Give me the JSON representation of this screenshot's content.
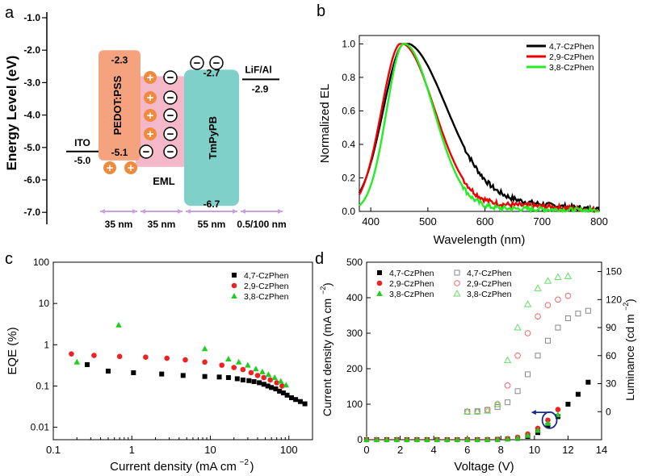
{
  "panel_labels": [
    "a",
    "b",
    "c",
    "d"
  ],
  "chart_data": [
    {
      "type": "energy-diagram",
      "panel": "a",
      "ylabel": "Energy Level (eV)",
      "ylim": [
        -7.0,
        -1.0
      ],
      "yticks": [
        "-1.0",
        "-2.0",
        "-3.0",
        "-4.0",
        "-5.0",
        "-6.0",
        "-7.0"
      ],
      "layers": [
        {
          "name": "ITO",
          "levels": [
            "-5.0"
          ],
          "thickness": ""
        },
        {
          "name": "PEDOT:PSS",
          "levels": [
            "-2.3",
            "-5.1"
          ],
          "thickness": "35 nm",
          "color": "#f4a37e"
        },
        {
          "name": "EML",
          "levels": [],
          "thickness": "35 nm",
          "color": "#f4b8c8"
        },
        {
          "name": "TmPyPB",
          "levels": [
            "-2.7",
            "-6.7"
          ],
          "thickness": "55 nm",
          "color": "#7fd0c8"
        },
        {
          "name": "LiF/Al",
          "levels": [
            "-2.9"
          ],
          "thickness": "0.5/100 nm"
        }
      ],
      "charges": {
        "hole": "+",
        "electron": "−"
      }
    },
    {
      "type": "line",
      "panel": "b",
      "xlabel": "Wavelength (nm)",
      "ylabel": "Normalized EL",
      "xlim": [
        380,
        800
      ],
      "ylim": [
        0,
        1.05
      ],
      "xticks": [
        400,
        500,
        600,
        700,
        800
      ],
      "yticks": [
        0.0,
        0.2,
        0.4,
        0.6,
        0.8,
        1.0
      ],
      "series": [
        {
          "name": "4,7-CzPhen",
          "color": "#000000",
          "peak": 460,
          "sigL": 38,
          "sigR": 72,
          "tail": 0.045
        },
        {
          "name": "2,9-CzPhen",
          "color": "#ee0000",
          "peak": 453,
          "sigL": 34,
          "sigR": 58,
          "tail": 0.035
        },
        {
          "name": "3,8-CzPhen",
          "color": "#22ee22",
          "peak": 458,
          "sigL": 30,
          "sigR": 52,
          "tail": 0.015
        }
      ]
    },
    {
      "type": "scatter",
      "panel": "c",
      "xscale": "log",
      "yscale": "log",
      "xlabel": "Current density (mA cm",
      "xlabel_sup": "−2",
      "xlabel_end": ")",
      "ylabel": "EQE (%)",
      "xlim": [
        0.1,
        200
      ],
      "ylim": [
        0.005,
        100
      ],
      "xticks": [
        0.1,
        1,
        10,
        100
      ],
      "yticks": [
        0.01,
        0.1,
        1,
        10,
        100
      ],
      "xtick_labels": [
        "0.1",
        "1",
        "10",
        "100"
      ],
      "ytick_labels": [
        "0.01",
        "0.1",
        "1",
        "10",
        "100"
      ],
      "series": [
        {
          "name": "4,7-CzPhen",
          "marker": "square",
          "color": "#000000",
          "x": [
            0.27,
            0.5,
            1.05,
            2.4,
            4.5,
            8.5,
            13,
            17,
            22,
            26,
            31,
            36,
            42,
            48,
            54,
            60,
            68,
            76,
            85,
            95,
            108,
            122,
            140,
            160
          ],
          "y": [
            0.33,
            0.23,
            0.21,
            0.195,
            0.18,
            0.17,
            0.165,
            0.16,
            0.15,
            0.14,
            0.135,
            0.128,
            0.12,
            0.11,
            0.1,
            0.092,
            0.085,
            0.075,
            0.068,
            0.06,
            0.052,
            0.047,
            0.042,
            0.037
          ]
        },
        {
          "name": "2,9-CzPhen",
          "marker": "circle",
          "color": "#ee2222",
          "x": [
            0.17,
            0.33,
            0.7,
            1.5,
            2.8,
            4.8,
            8.5,
            14,
            20,
            26,
            33,
            40,
            48,
            58,
            70,
            82
          ],
          "y": [
            0.6,
            0.55,
            0.52,
            0.5,
            0.47,
            0.43,
            0.38,
            0.32,
            0.28,
            0.25,
            0.21,
            0.18,
            0.16,
            0.14,
            0.12,
            0.1
          ]
        },
        {
          "name": "3,8-CzPhen",
          "marker": "triangle",
          "color": "#22cc22",
          "x": [
            0.2,
            0.68,
            8.5,
            17,
            23,
            30,
            38,
            46,
            55,
            66,
            79,
            92
          ],
          "y": [
            0.38,
            3.0,
            0.8,
            0.45,
            0.38,
            0.32,
            0.26,
            0.22,
            0.19,
            0.16,
            0.13,
            0.105
          ]
        }
      ]
    },
    {
      "type": "scatter-dual-axis",
      "panel": "d",
      "xlabel": "Voltage (V)",
      "ylabel_left": "Current density (mA cm",
      "ylabel_left_sup": "−2",
      "ylabel_left_end": ")",
      "ylabel_right": "Luminance (cd m",
      "ylabel_right_sup": "−2",
      "ylabel_right_end": ")",
      "xlim": [
        0,
        14
      ],
      "ylim_left": [
        0,
        500
      ],
      "ylim_right": [
        -30,
        160
      ],
      "xticks": [
        0,
        2,
        4,
        6,
        8,
        10,
        12,
        14
      ],
      "yticks_left": [
        0,
        100,
        200,
        300,
        400,
        500
      ],
      "yticks_right": [
        0,
        30,
        60,
        90,
        120,
        150
      ],
      "current_density": [
        {
          "name": "4,7-CzPhen",
          "marker": "square",
          "color": "#000000",
          "x": [
            0,
            0.6,
            1.2,
            1.8,
            2.4,
            3,
            3.6,
            4.2,
            4.8,
            5.4,
            6,
            6.6,
            7.2,
            7.8,
            8.4,
            9,
            9.6,
            10.2,
            10.8,
            11.4,
            12,
            12.6,
            13.2
          ],
          "y": [
            0,
            0,
            0,
            0,
            0,
            0,
            0,
            0,
            0,
            0,
            0,
            0,
            0.2,
            0.8,
            2,
            4,
            9,
            20,
            40,
            65,
            100,
            128,
            162
          ]
        },
        {
          "name": "2,9-CzPhen",
          "marker": "circle",
          "color": "#ee2222",
          "x": [
            0,
            0.6,
            1.2,
            1.8,
            2.4,
            3,
            3.6,
            4.2,
            4.8,
            5.4,
            6,
            6.6,
            7.2,
            7.8,
            8.4,
            9,
            9.6,
            10.2,
            10.8,
            11.4
          ],
          "y": [
            0,
            0,
            0,
            0,
            0,
            0,
            0,
            0,
            0,
            0,
            0,
            0,
            0.3,
            1,
            3,
            7,
            16,
            32,
            55,
            85
          ]
        },
        {
          "name": "3,8-CzPhen",
          "marker": "triangle",
          "color": "#22cc22",
          "x": [
            0,
            0.6,
            1.2,
            1.8,
            2.4,
            3,
            3.6,
            4.2,
            4.8,
            5.4,
            6,
            6.6,
            7.2,
            7.8,
            8.4,
            9,
            9.6,
            10.2,
            10.8,
            11.4
          ],
          "y": [
            0,
            0,
            0,
            0,
            0,
            0,
            0,
            0,
            0,
            0,
            0,
            0,
            0.2,
            0.7,
            2,
            5,
            12,
            26,
            46,
            70
          ]
        }
      ],
      "luminance": [
        {
          "name": "4,7-CzPhen",
          "marker": "square-open",
          "color": "#888888",
          "x": [
            6,
            6.6,
            7.2,
            7.8,
            8.4,
            9,
            9.6,
            10.2,
            10.8,
            11.4,
            12,
            12.6,
            13.2
          ],
          "y": [
            0,
            0.5,
            2,
            5,
            10,
            22,
            40,
            60,
            76,
            90,
            100,
            105,
            108
          ]
        },
        {
          "name": "2,9-CzPhen",
          "marker": "circle-open",
          "color": "#ee6666",
          "x": [
            6,
            6.6,
            7.2,
            7.8,
            8.4,
            9,
            9.6,
            10.2,
            10.8,
            11.4,
            12
          ],
          "y": [
            0,
            0,
            2,
            8,
            28,
            60,
            84,
            102,
            114,
            120,
            124
          ]
        },
        {
          "name": "3,8-CzPhen",
          "marker": "triangle-open",
          "color": "#66dd66",
          "x": [
            6,
            6.6,
            7.2,
            7.8,
            8.4,
            9,
            9.6,
            10.2,
            10.8,
            11.4,
            12
          ],
          "y": [
            0,
            0,
            1,
            8,
            55,
            90,
            115,
            132,
            140,
            144,
            145
          ]
        }
      ]
    }
  ]
}
